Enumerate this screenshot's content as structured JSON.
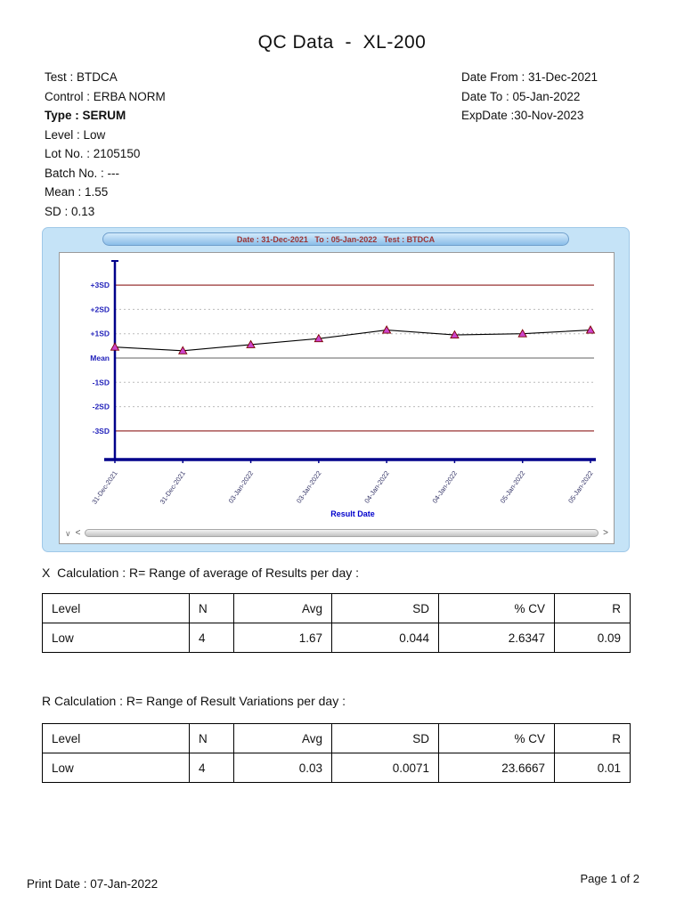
{
  "page": {
    "title": "QC Data  -  XL-200",
    "footer_left": "Print Date : 07-Jan-2022",
    "footer_right": "Page 1 of 2"
  },
  "info_left": {
    "test": "Test : BTDCA",
    "control": "Control : ERBA NORM",
    "type": "Type : SERUM",
    "level": "Level : Low",
    "lot_no": "Lot No. : 2105150",
    "batch_no": "Batch No. : ---",
    "mean": "Mean : 1.55",
    "sd": "SD : 0.13"
  },
  "info_right": {
    "date_from": "Date From : 31-Dec-2021",
    "date_to": "Date To : 05-Jan-2022",
    "exp_date": "ExpDate :30-Nov-2023"
  },
  "chart_data": {
    "type": "line",
    "title": "Date : 31-Dec-2021   To : 05-Jan-2022   Test : BTDCA",
    "xlabel": "Result Date",
    "ylabel": "",
    "y_axis_labels": [
      "+3SD",
      "+2SD",
      "+1SD",
      "Mean",
      "-1SD",
      "-2SD",
      "-3SD"
    ],
    "x": [
      "31-Dec-2021",
      "31-Dec-2021",
      "03-Jan-2022",
      "03-Jan-2022",
      "04-Jan-2022",
      "04-Jan-2022",
      "05-Jan-2022",
      "05-Jan-2022"
    ],
    "values_sd": [
      0.45,
      0.3,
      0.55,
      0.8,
      1.15,
      0.95,
      1.0,
      1.15
    ],
    "values_approx": [
      1.61,
      1.59,
      1.62,
      1.65,
      1.7,
      1.67,
      1.68,
      1.7
    ],
    "mean": 1.55,
    "sd": 0.13,
    "ylim_sd": [
      -4.2,
      4.2
    ],
    "grid": "horizontal",
    "legend": "none",
    "marker": "triangle",
    "colors": {
      "panel": "#c5e3f7",
      "axis": "#00008b",
      "sigma3_line": "#993333",
      "mean_line": "#808080",
      "minor_line": "#bbbbbb",
      "line": "#000000",
      "marker_fill": "#cc44cc",
      "marker_stroke": "#7a0000",
      "label": "#2222bb",
      "tick_label": "#333366",
      "xlabel_color": "#0000cc"
    }
  },
  "table_x": {
    "caption": "X  Calculation : R= Range of average of Results per day :",
    "headers": [
      "Level",
      "N",
      "Avg",
      "SD",
      "% CV",
      "R"
    ],
    "rows": [
      [
        "Low",
        "4",
        "1.67",
        "0.044",
        "2.6347",
        "0.09"
      ]
    ]
  },
  "table_r": {
    "caption": "R Calculation : R= Range of Result Variations per day :",
    "headers": [
      "Level",
      "N",
      "Avg",
      "SD",
      "% CV",
      "R"
    ],
    "rows": [
      [
        "Low",
        "4",
        "0.03",
        "0.0071",
        "23.6667",
        "0.01"
      ]
    ]
  },
  "scrollbar": {
    "corner": "∨",
    "left_arrow": "<",
    "right_arrow": ">"
  }
}
